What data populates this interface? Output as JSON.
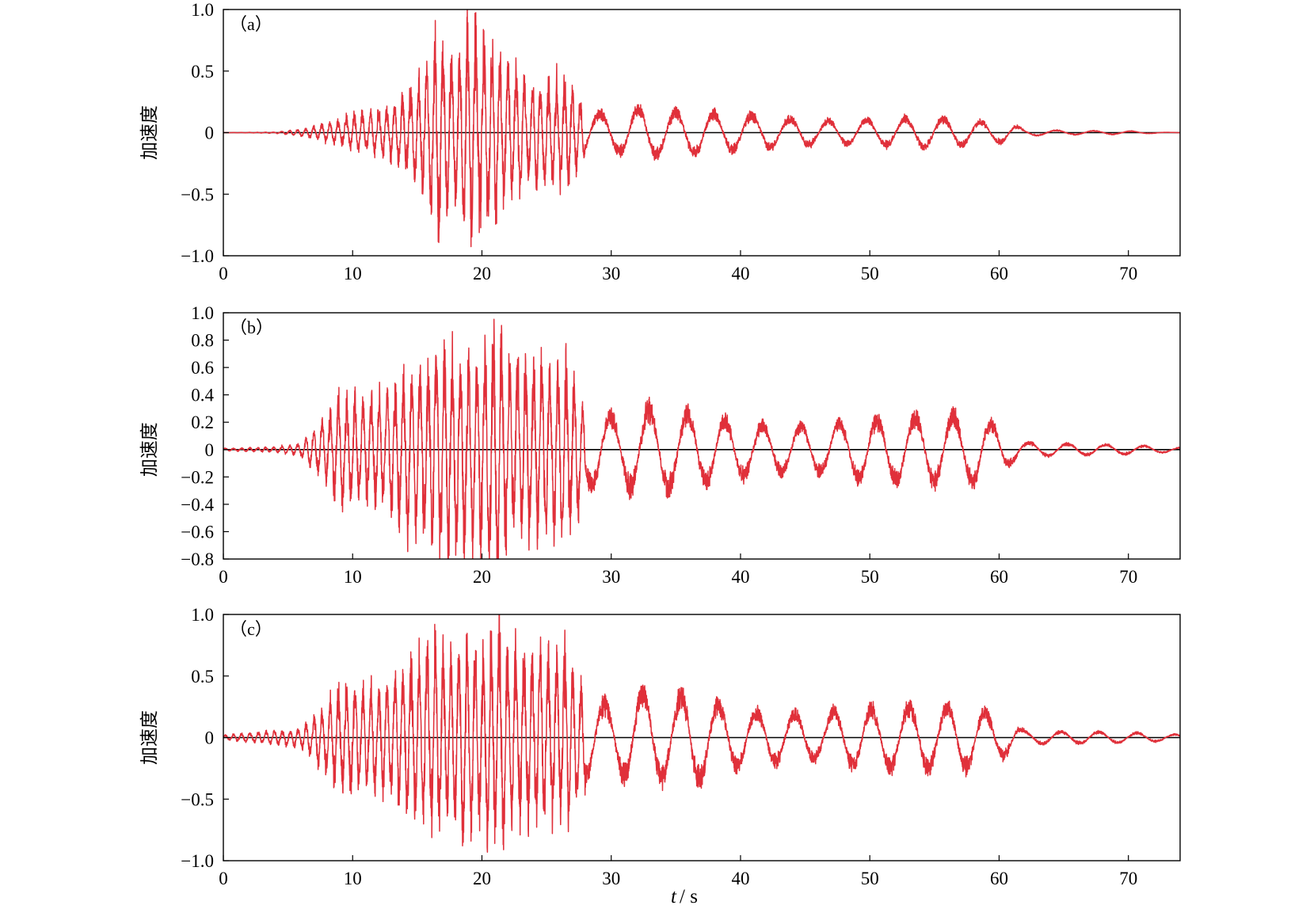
{
  "figure": {
    "line_color": "#e0303a",
    "zero_line_color": "#000000",
    "xlabel_italic": "t",
    "xlabel_rest": "/ s"
  },
  "chart_data": [
    {
      "type": "line",
      "label": "（a）",
      "ylabel": "加速度",
      "xlim": [
        0,
        74
      ],
      "ylim": [
        -1.0,
        1.0
      ],
      "xticks": [
        0,
        10,
        20,
        30,
        40,
        50,
        60,
        70
      ],
      "yticks": [
        1.0,
        0.5,
        0,
        -0.5,
        -1.0
      ],
      "ytick_labels": [
        "1.0",
        "0.5",
        "0",
        "−0.5",
        "−1.0"
      ],
      "envelope": {
        "t": [
          0,
          4,
          6,
          8,
          10,
          12,
          14,
          15,
          16,
          16.5,
          17,
          18,
          18.8,
          20,
          21,
          22,
          24,
          26.5,
          28,
          30,
          32,
          34,
          38,
          42,
          46,
          50,
          54,
          58,
          61,
          62,
          66,
          70,
          72.5,
          74
        ],
        "amp": [
          0,
          0.005,
          0.03,
          0.08,
          0.15,
          0.2,
          0.3,
          0.45,
          0.6,
          0.9,
          0.7,
          0.62,
          0.98,
          0.8,
          0.7,
          0.6,
          0.4,
          0.5,
          0.2,
          0.18,
          0.25,
          0.22,
          0.2,
          0.16,
          0.12,
          0.12,
          0.15,
          0.12,
          0.08,
          0.03,
          0.02,
          0.015,
          0.005,
          0
        ]
      },
      "seed": 11
    },
    {
      "type": "line",
      "label": "（b）",
      "ylabel": "加速度",
      "xlim": [
        0,
        74
      ],
      "ylim": [
        -0.8,
        1.0
      ],
      "xticks": [
        0,
        10,
        20,
        30,
        40,
        50,
        60,
        70
      ],
      "yticks": [
        1.0,
        0.8,
        0.6,
        0.4,
        0.2,
        0,
        -0.2,
        -0.4,
        -0.6,
        -0.8
      ],
      "ytick_labels": [
        "1.0",
        "0.8",
        "0.6",
        "0.4",
        "0.2",
        "0",
        "−0.2",
        "−0.4",
        "−0.6",
        "−0.8"
      ],
      "envelope": {
        "t": [
          0,
          4,
          6,
          8,
          9,
          11,
          13,
          14,
          16,
          16.5,
          18,
          19,
          20,
          21.3,
          22,
          24,
          26.5,
          28,
          30,
          32,
          34,
          38,
          42,
          46,
          48,
          54.5,
          58.5,
          61,
          62,
          66,
          70,
          74
        ],
        "amp": [
          0.01,
          0.02,
          0.05,
          0.25,
          0.42,
          0.4,
          0.45,
          0.6,
          0.65,
          0.85,
          0.7,
          0.74,
          0.72,
          0.98,
          0.7,
          0.72,
          0.72,
          0.35,
          0.3,
          0.38,
          0.38,
          0.28,
          0.22,
          0.2,
          0.25,
          0.3,
          0.3,
          0.12,
          0.06,
          0.05,
          0.04,
          0.02
        ]
      },
      "seed": 23
    },
    {
      "type": "line",
      "label": "（c）",
      "ylabel": "加速度",
      "xlim": [
        0,
        74
      ],
      "ylim": [
        -1.0,
        1.0
      ],
      "xticks": [
        0,
        10,
        20,
        30,
        40,
        50,
        60,
        70
      ],
      "yticks": [
        1.0,
        0.5,
        0,
        -0.5,
        -1.0
      ],
      "ytick_labels": [
        "1.0",
        "0.5",
        "0",
        "−0.5",
        "−1.0"
      ],
      "envelope": {
        "t": [
          0,
          4,
          6,
          8,
          9,
          11,
          13,
          15,
          16.5,
          18,
          19,
          20,
          21.3,
          22,
          24,
          26.5,
          28,
          30,
          32,
          34,
          36.5,
          38.5,
          42,
          46,
          48,
          54.5,
          58.5,
          61,
          62,
          66,
          70,
          74
        ],
        "amp": [
          0.02,
          0.06,
          0.08,
          0.3,
          0.45,
          0.42,
          0.5,
          0.7,
          0.8,
          0.8,
          0.8,
          0.75,
          0.98,
          0.7,
          0.72,
          0.72,
          0.4,
          0.35,
          0.45,
          0.4,
          0.45,
          0.33,
          0.25,
          0.22,
          0.28,
          0.32,
          0.3,
          0.15,
          0.06,
          0.06,
          0.05,
          0.03
        ]
      },
      "seed": 37
    }
  ]
}
